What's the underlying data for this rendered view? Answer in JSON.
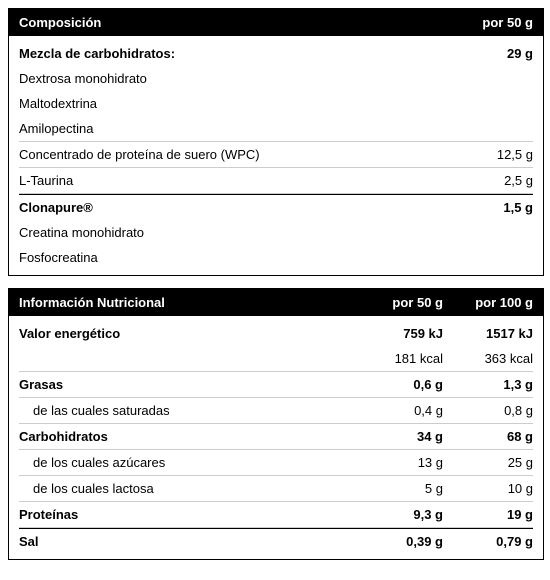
{
  "composition": {
    "title": "Composición",
    "col_header": "por 50 g",
    "rows": [
      {
        "label": "Mezcla de carbohidratos:",
        "value": "29 g",
        "bold": true,
        "noborder": true,
        "spacer_top": true
      },
      {
        "label": "Dextrosa monohidrato",
        "value": "",
        "noborder": true
      },
      {
        "label": "Maltodextrina",
        "value": "",
        "noborder": true
      },
      {
        "label": "Amilopectina",
        "value": ""
      },
      {
        "label": "Concentrado de proteína de suero (WPC)",
        "value": "12,5 g"
      },
      {
        "label": "L-Taurina",
        "value": "2,5 g"
      },
      {
        "label": "Clonapure®",
        "value": "1,5 g",
        "bold": true,
        "topborder": true
      },
      {
        "label": "Creatina monohidrato",
        "value": "",
        "noborder": true
      },
      {
        "label": "Fosfocreatina",
        "value": "",
        "noborder": true,
        "last": true
      }
    ]
  },
  "nutrition": {
    "title": "Información Nutricional",
    "col_m": "por 50 g",
    "col_r": "por 100 g",
    "rows": [
      {
        "label": "Valor energético",
        "m": "759 kJ",
        "r": "1517 kJ",
        "bold": true,
        "noborder": true,
        "spacer_top": true
      },
      {
        "label": "",
        "m": "181 kcal",
        "r": "363 kcal"
      },
      {
        "label": "Grasas",
        "m": "0,6 g",
        "r": "1,3 g",
        "bold": true
      },
      {
        "label": "de las cuales saturadas",
        "m": "0,4 g",
        "r": "0,8 g",
        "indent": true
      },
      {
        "label": "Carbohidratos",
        "m": "34 g",
        "r": "68 g",
        "bold": true
      },
      {
        "label": "de los cuales azúcares",
        "m": "13 g",
        "r": "25 g",
        "indent": true
      },
      {
        "label": "de los cuales lactosa",
        "m": "5 g",
        "r": "10 g",
        "indent": true
      },
      {
        "label": "Proteínas",
        "m": "9,3 g",
        "r": "19 g",
        "bold": true
      },
      {
        "label": "Sal",
        "m": "0,39 g",
        "r": "0,79 g",
        "bold": true,
        "topborder": true,
        "last": true
      }
    ]
  }
}
